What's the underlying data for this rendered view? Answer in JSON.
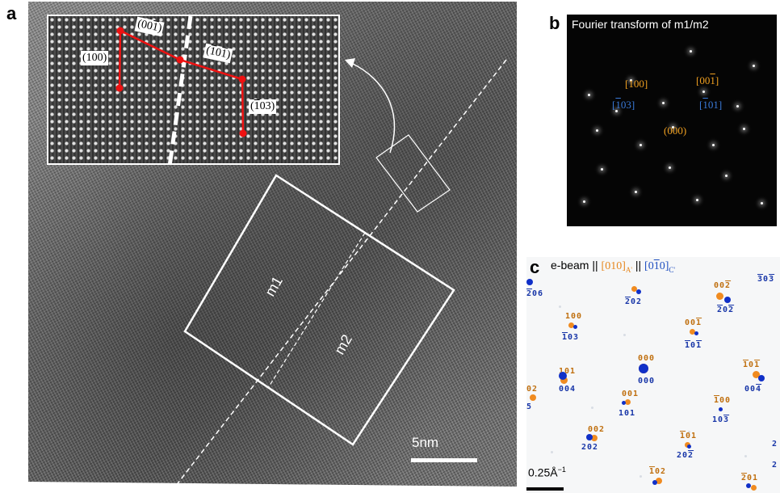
{
  "panels": {
    "a": {
      "letter": "a",
      "inset_labels": {
        "l100": "(100)",
        "l001_pre": "(00",
        "l001_ov": "1",
        "l001_post": ")",
        "l101_pre": "(",
        "l101_ov1": "1",
        "l101_mid": "0",
        "l101_ov2": "1",
        "l101_post": ")",
        "l103_pre": "(",
        "l103_ov": "1",
        "l103_post": "03)"
      },
      "region_labels": [
        "m1",
        "m2"
      ],
      "scale_bar": "5nm"
    },
    "b": {
      "letter": "b",
      "title": "Fourier transform of m1/m2",
      "spot_labels": {
        "s100": "[100]",
        "s001_pre": "[00",
        "s001_ov": "1",
        "s001_post": "]",
        "s103_pre": "[",
        "s103_ov": "1",
        "s103_post": "03]",
        "s101_pre": "[",
        "s101_ov": "1",
        "s101_post": "01]",
        "s000": "(000)"
      },
      "colors": {
        "orange": "#f0a020",
        "blue": "#3a7ad8"
      }
    },
    "c": {
      "letter": "c",
      "title_prefix": "e-beam || ",
      "title_orange": "[010]",
      "title_orange_sub": "A'",
      "title_sep": " || ",
      "title_blue_pre": "[0",
      "title_blue_ov": "1",
      "title_blue_post": "0]",
      "title_blue_sub": "C'",
      "scale_bar": "0.25Å",
      "scale_bar_sup": "−1"
    }
  }
}
